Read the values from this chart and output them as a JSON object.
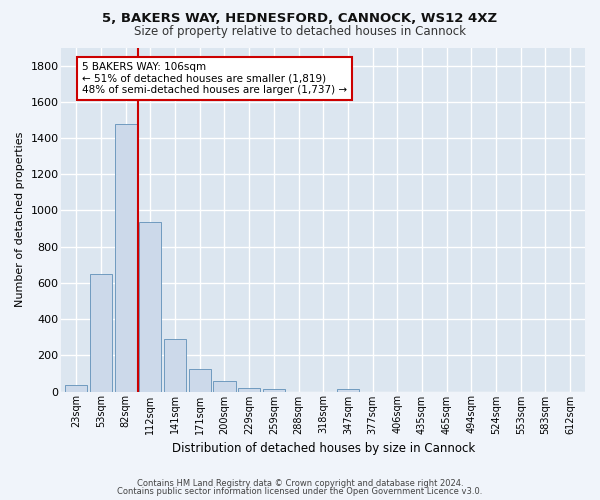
{
  "title_line1": "5, BAKERS WAY, HEDNESFORD, CANNOCK, WS12 4XZ",
  "title_line2": "Size of property relative to detached houses in Cannock",
  "xlabel": "Distribution of detached houses by size in Cannock",
  "ylabel": "Number of detached properties",
  "categories": [
    "23sqm",
    "53sqm",
    "82sqm",
    "112sqm",
    "141sqm",
    "171sqm",
    "200sqm",
    "229sqm",
    "259sqm",
    "288sqm",
    "318sqm",
    "347sqm",
    "377sqm",
    "406sqm",
    "435sqm",
    "465sqm",
    "494sqm",
    "524sqm",
    "553sqm",
    "583sqm",
    "612sqm"
  ],
  "values": [
    38,
    650,
    1475,
    935,
    290,
    125,
    60,
    22,
    15,
    0,
    0,
    15,
    0,
    0,
    0,
    0,
    0,
    0,
    0,
    0,
    0
  ],
  "bar_color": "#ccd9ea",
  "bar_edge_color": "#6090b8",
  "vline_x_index": 2.5,
  "vline_color": "#cc0000",
  "annotation_text": "5 BAKERS WAY: 106sqm\n← 51% of detached houses are smaller (1,819)\n48% of semi-detached houses are larger (1,737) →",
  "annotation_box_color": "#ffffff",
  "annotation_box_edge_color": "#cc0000",
  "ylim": [
    0,
    1900
  ],
  "yticks": [
    0,
    200,
    400,
    600,
    800,
    1000,
    1200,
    1400,
    1600,
    1800
  ],
  "fig_bg_color": "#f0f4fa",
  "plot_bg_color": "#dce6f0",
  "grid_color": "#ffffff",
  "footer_line1": "Contains HM Land Registry data © Crown copyright and database right 2024.",
  "footer_line2": "Contains public sector information licensed under the Open Government Licence v3.0."
}
